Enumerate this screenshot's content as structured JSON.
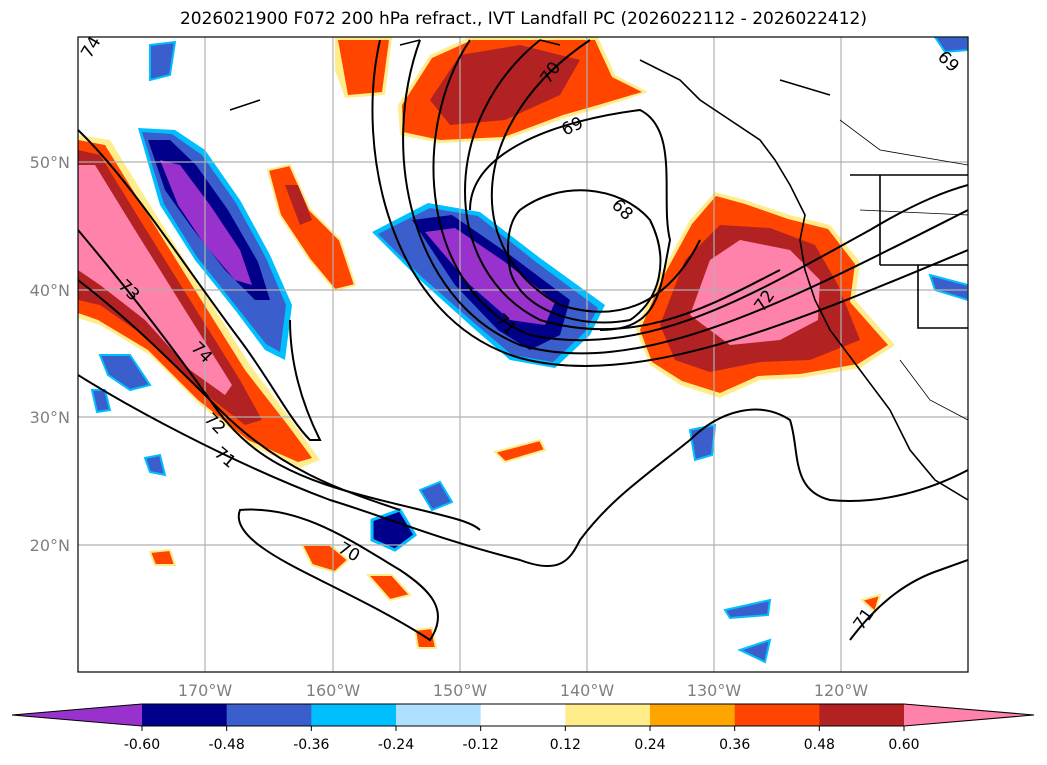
{
  "title": "2026021900 F072 200 hPa refract., IVT Landfall PC (2026022112 - 2026022412)",
  "axes": {
    "lon_labels": [
      "170°W",
      "160°W",
      "150°W",
      "140°W",
      "130°W",
      "120°W"
    ],
    "lat_labels": [
      "50°N",
      "40°N",
      "30°N",
      "20°N"
    ]
  },
  "colorbar": {
    "levels": [
      "-0.60",
      "-0.48",
      "-0.36",
      "-0.24",
      "-0.12",
      "0.12",
      "0.24",
      "0.36",
      "0.48",
      "0.60"
    ],
    "colors": [
      "#9932cc",
      "#00008b",
      "#3a5fcd",
      "#00bfff",
      "#b0e0ff",
      "#ffffff",
      "#ffec8b",
      "#ffa500",
      "#ff4500",
      "#b22222",
      "#ff82ab"
    ],
    "extend": "both"
  },
  "contour_labels": [
    "74",
    "73",
    "74",
    "72",
    "71",
    "70",
    "70",
    "69",
    "68",
    "71",
    "72",
    "71",
    "69"
  ]
}
